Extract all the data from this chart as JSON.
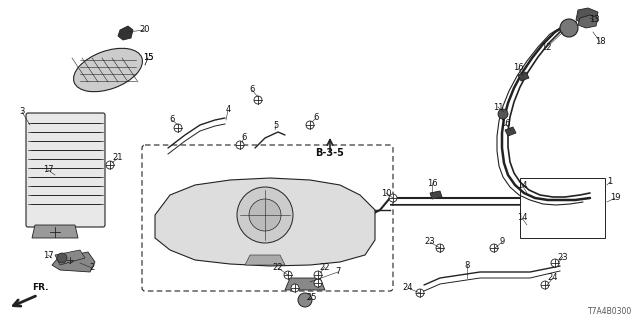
{
  "bg_color": "#ffffff",
  "line_color": "#222222",
  "text_color": "#111111",
  "diagram_code": "T7A4B0300",
  "section_label": "B-3-5",
  "figsize": [
    6.4,
    3.2
  ],
  "dpi": 100
}
